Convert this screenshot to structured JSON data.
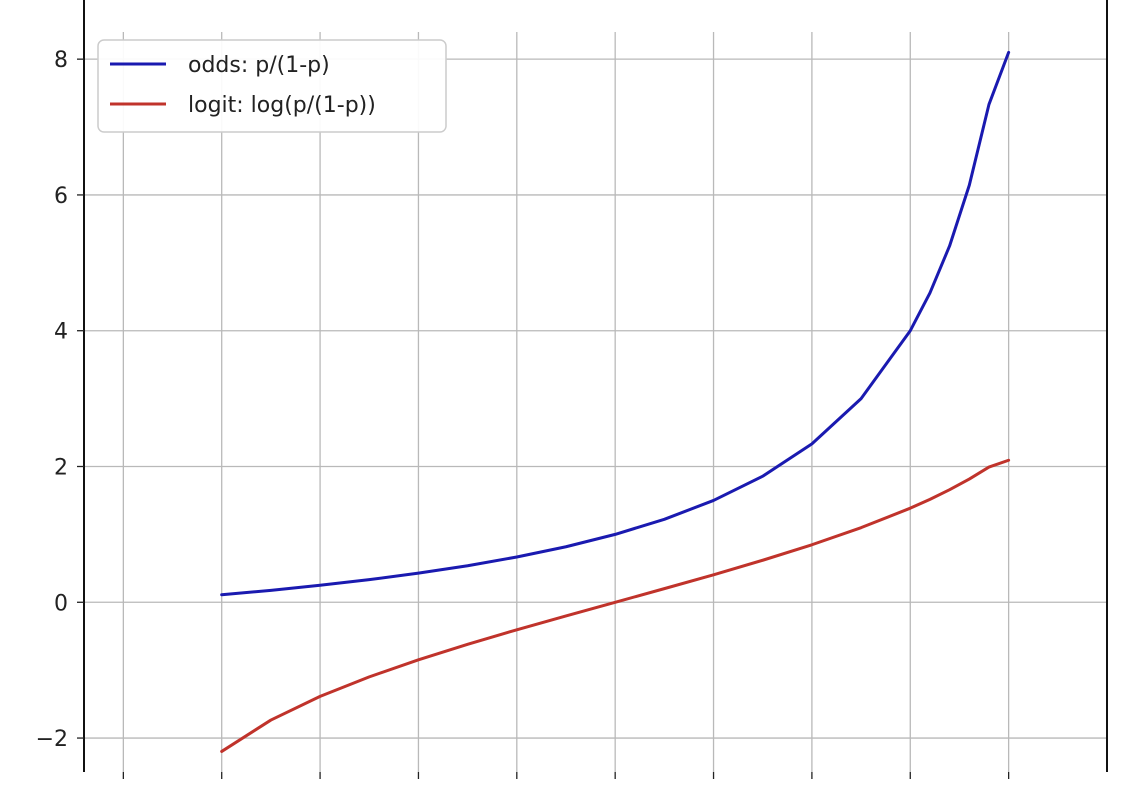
{
  "chart_data": {
    "type": "line",
    "title": "",
    "xlabel": "",
    "ylabel": "",
    "xlim": [
      -0.04,
      1.0
    ],
    "ylim": [
      -2.5,
      8.4
    ],
    "yticks": [
      -2,
      0,
      2,
      4,
      6,
      8
    ],
    "ytick_labels": [
      "−2",
      "0",
      "2",
      "4",
      "6",
      "8"
    ],
    "xticks": [
      0.0,
      0.1,
      0.2,
      0.3,
      0.4,
      0.5,
      0.6,
      0.7,
      0.8,
      0.9
    ],
    "grid": true,
    "legend_position": "top-left",
    "series": [
      {
        "name": "odds: p/(1-p)",
        "color": "#1a1ab0",
        "x": [
          0.1,
          0.15,
          0.2,
          0.25,
          0.3,
          0.35,
          0.4,
          0.45,
          0.5,
          0.55,
          0.6,
          0.65,
          0.7,
          0.75,
          0.8,
          0.82,
          0.84,
          0.86,
          0.88,
          0.9
        ],
        "y": [
          0.111,
          0.176,
          0.25,
          0.333,
          0.429,
          0.538,
          0.667,
          0.818,
          1.0,
          1.222,
          1.5,
          1.857,
          2.333,
          3.0,
          4.0,
          4.556,
          5.25,
          6.143,
          7.333,
          8.1
        ]
      },
      {
        "name": "logit: log(p/(1-p))",
        "color": "#c0332b",
        "x": [
          0.1,
          0.15,
          0.2,
          0.25,
          0.3,
          0.35,
          0.4,
          0.45,
          0.5,
          0.55,
          0.6,
          0.65,
          0.7,
          0.75,
          0.8,
          0.82,
          0.84,
          0.86,
          0.88,
          0.9
        ],
        "y": [
          -2.197,
          -1.735,
          -1.386,
          -1.099,
          -0.847,
          -0.619,
          -0.405,
          -0.201,
          0.0,
          0.201,
          0.405,
          0.619,
          0.847,
          1.099,
          1.386,
          1.516,
          1.658,
          1.815,
          1.992,
          2.092
        ]
      }
    ]
  }
}
